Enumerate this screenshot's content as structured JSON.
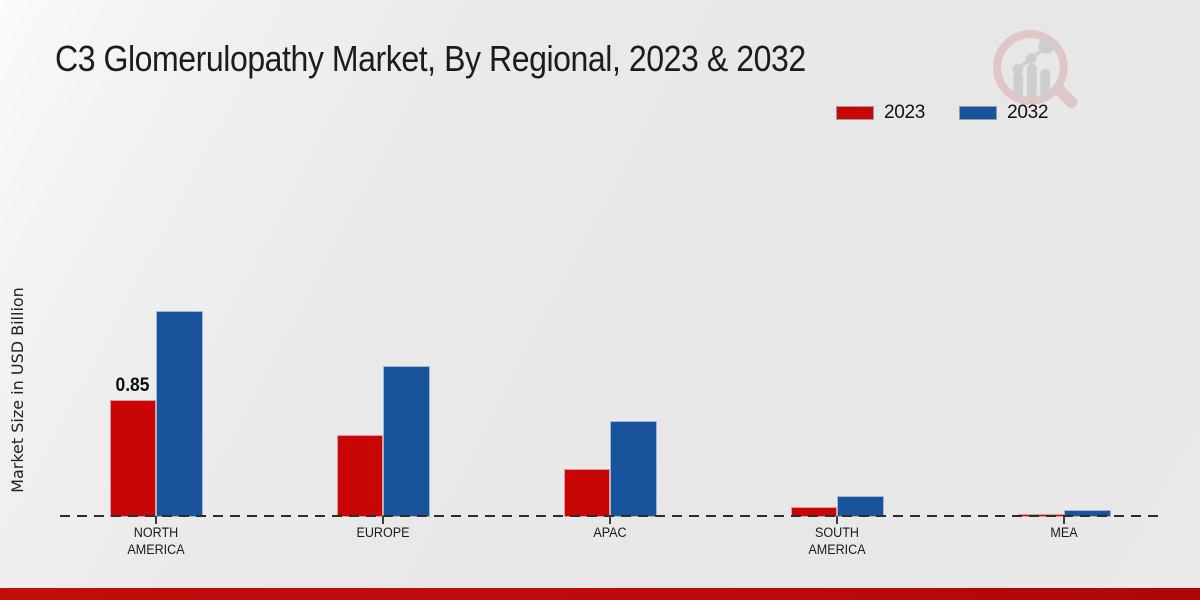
{
  "title": "C3 Glomerulopathy Market, By Regional, 2023 & 2032",
  "watermark_icon": "magnifying-glass-bar-chart-logo",
  "chart_data": {
    "type": "bar",
    "title": "C3 Glomerulopathy Market, By Regional, 2023 & 2032",
    "categories": [
      "NORTH AMERICA",
      "EUROPE",
      "APAC",
      "SOUTH AMERICA",
      "MEA"
    ],
    "series": [
      {
        "name": "2023",
        "color": "#c80606",
        "values": [
          0.85,
          0.6,
          0.35,
          0.07,
          0.02
        ]
      },
      {
        "name": "2032",
        "color": "#17549b",
        "values": [
          1.5,
          1.1,
          0.7,
          0.15,
          0.05
        ]
      }
    ],
    "annotations": [
      {
        "text": "0.85",
        "series": 0,
        "category": 0
      }
    ],
    "xlabel": "",
    "ylabel": "Market Size in USD Billion",
    "ylim": [
      0,
      1.6
    ],
    "grid": false,
    "legend_position": "top-right",
    "baseline_style": "dashed",
    "accent_bar_color": "#bd0a0a"
  }
}
